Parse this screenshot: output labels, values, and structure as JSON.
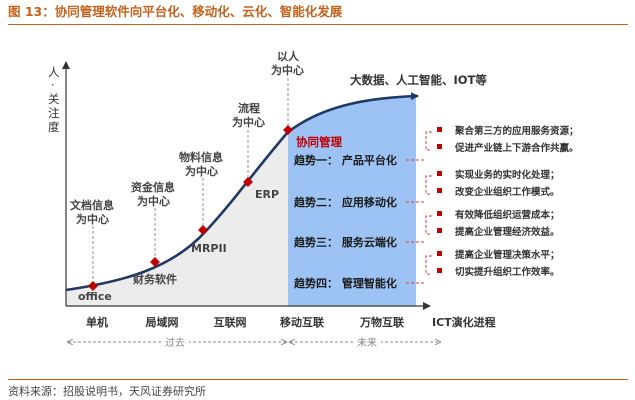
{
  "figure_title": "图 13：协同管理软件向平台化、移动化、云化、智能化发展",
  "source": "资料来源：招股说明书，天风证券研究所",
  "colors": {
    "accent": "#c4621c",
    "curve": "#1f3864",
    "future_fill": "#9cc3f3",
    "past_fill": "#ececec",
    "marker": "#c00000",
    "bracket": "#e03a3a"
  },
  "y_axis_label": [
    "人",
    "·",
    "关",
    "注",
    "度"
  ],
  "x_axis": {
    "stages": [
      "单机",
      "局域网",
      "互联网",
      "移动互联",
      "万物互联"
    ],
    "end_label": "ICT演化进程",
    "past_label": "过去",
    "future_label": "未来"
  },
  "curve_labels": {
    "office": "office",
    "finance": "财务软件",
    "mrpii": "MRPII",
    "erp": "ERP",
    "collab": "协同管理",
    "doc_info": [
      "文档信息",
      "为中心"
    ],
    "fund_info": [
      "资金信息",
      "为中心"
    ],
    "material_info": [
      "物料信息",
      "为中心"
    ],
    "process": [
      "流程",
      "为中心"
    ],
    "people": [
      "以人",
      "为中心"
    ],
    "future_tech": "大数据、人工智能、IOT等"
  },
  "trends": [
    {
      "label": "趋势一：  产品平台化",
      "notes": [
        "聚合第三方的应用服务资源；",
        "促进产业链上下游合作共赢。"
      ]
    },
    {
      "label": "趋势二：  应用移动化",
      "notes": [
        "实现业务的实时化处理；",
        "改变企业组织工作模式。"
      ]
    },
    {
      "label": "趋势三：  服务云端化",
      "notes": [
        "有效降低组织运营成本；",
        "提高企业管理经济效益。"
      ]
    },
    {
      "label": "趋势四：  管理智能化",
      "notes": [
        "提高企业管理决策水平；",
        "切实提升组织工作效率。"
      ]
    }
  ]
}
